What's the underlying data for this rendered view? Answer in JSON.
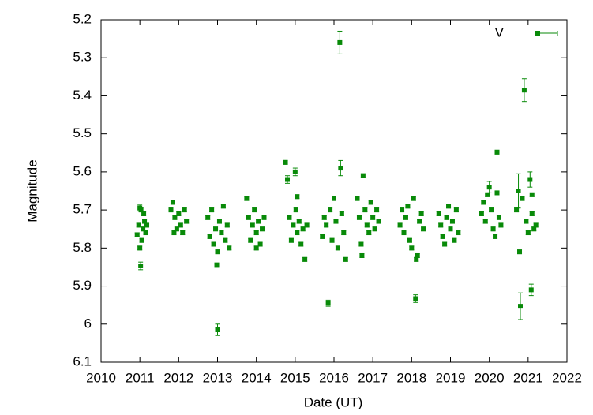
{
  "chart_data": {
    "type": "scatter",
    "xlabel": "Date (UT)",
    "ylabel": "Magnitude",
    "xlim": [
      2010,
      2022
    ],
    "xticks": [
      2010,
      2011,
      2012,
      2013,
      2014,
      2015,
      2016,
      2017,
      2018,
      2019,
      2020,
      2021,
      2022
    ],
    "ylim": [
      5.2,
      6.1
    ],
    "yticks": [
      5.2,
      5.3,
      5.4,
      5.5,
      5.6,
      5.7,
      5.8,
      5.9,
      6,
      6.1
    ],
    "y_inverted": true,
    "legend": "top-right",
    "series": [
      {
        "name": "V",
        "color": "#088a08",
        "x": [
          2010.93,
          2010.97,
          2011.0,
          2011.03,
          2011.05,
          2011.0,
          2011.08,
          2011.12,
          2011.15,
          2011.18,
          2011.1,
          2011.02,
          2011.8,
          2011.85,
          2011.9,
          2011.95,
          2012.0,
          2012.05,
          2012.1,
          2012.15,
          2012.2,
          2011.88,
          2012.75,
          2012.8,
          2012.85,
          2012.9,
          2012.95,
          2013.0,
          2013.05,
          2013.1,
          2013.15,
          2013.2,
          2013.25,
          2013.3,
          2012.98,
          2013.0,
          2013.75,
          2013.8,
          2013.85,
          2013.9,
          2013.95,
          2014.0,
          2014.05,
          2014.1,
          2014.15,
          2014.2,
          2014.0,
          2014.75,
          2014.8,
          2014.85,
          2014.9,
          2014.95,
          2015.0,
          2015.02,
          2015.05,
          2015.1,
          2015.15,
          2015.2,
          2015.25,
          2015.3,
          2015.05,
          2015.7,
          2015.75,
          2015.8,
          2015.85,
          2015.9,
          2015.95,
          2016.0,
          2016.05,
          2016.1,
          2016.15,
          2016.17,
          2016.2,
          2016.25,
          2016.3,
          2016.6,
          2016.65,
          2016.7,
          2016.72,
          2016.75,
          2016.8,
          2016.85,
          2016.9,
          2016.95,
          2017.0,
          2017.05,
          2017.1,
          2017.15,
          2017.7,
          2017.75,
          2017.8,
          2017.85,
          2017.9,
          2017.95,
          2018.0,
          2018.05,
          2018.1,
          2018.12,
          2018.15,
          2018.2,
          2018.25,
          2018.3,
          2018.7,
          2018.75,
          2018.8,
          2018.85,
          2018.9,
          2018.95,
          2019.0,
          2019.05,
          2019.1,
          2019.15,
          2019.2,
          2019.8,
          2019.85,
          2019.9,
          2019.95,
          2020.0,
          2020.05,
          2020.1,
          2020.15,
          2020.2,
          2020.2,
          2020.25,
          2020.3,
          2020.7,
          2020.75,
          2020.78,
          2020.8,
          2020.85,
          2020.9,
          2020.95,
          2021.0,
          2021.05,
          2021.08,
          2021.1,
          2021.15,
          2021.2,
          2021.1
        ],
        "values": [
          5.765,
          5.74,
          5.695,
          5.7,
          5.78,
          5.8,
          5.75,
          5.73,
          5.76,
          5.74,
          5.71,
          5.847,
          5.7,
          5.68,
          5.72,
          5.75,
          5.71,
          5.74,
          5.76,
          5.7,
          5.73,
          5.76,
          5.72,
          5.77,
          5.7,
          5.79,
          5.75,
          5.81,
          5.73,
          5.76,
          5.69,
          5.78,
          5.74,
          5.8,
          5.845,
          6.015,
          5.67,
          5.72,
          5.78,
          5.74,
          5.7,
          5.76,
          5.73,
          5.79,
          5.75,
          5.72,
          5.8,
          5.575,
          5.62,
          5.72,
          5.78,
          5.74,
          5.6,
          5.7,
          5.76,
          5.73,
          5.79,
          5.75,
          5.83,
          5.74,
          5.665,
          5.77,
          5.72,
          5.74,
          5.945,
          5.7,
          5.78,
          5.67,
          5.73,
          5.8,
          5.26,
          5.59,
          5.71,
          5.76,
          5.83,
          5.67,
          5.72,
          5.79,
          5.82,
          5.61,
          5.7,
          5.74,
          5.76,
          5.68,
          5.72,
          5.75,
          5.7,
          5.73,
          5.74,
          5.7,
          5.76,
          5.72,
          5.69,
          5.78,
          5.8,
          5.67,
          5.933,
          5.83,
          5.82,
          5.73,
          5.71,
          5.75,
          5.71,
          5.74,
          5.77,
          5.79,
          5.72,
          5.69,
          5.75,
          5.73,
          5.78,
          5.7,
          5.76,
          5.71,
          5.68,
          5.73,
          5.66,
          5.64,
          5.7,
          5.75,
          5.77,
          5.548,
          5.655,
          5.72,
          5.74,
          5.7,
          5.65,
          5.81,
          5.953,
          5.67,
          5.385,
          5.73,
          5.76,
          5.62,
          5.91,
          5.71,
          5.75,
          5.74,
          5.66
        ],
        "errors": [
          0.005,
          0.005,
          0.008,
          0.005,
          0.005,
          0.005,
          0.005,
          0.005,
          0.005,
          0.005,
          0.005,
          0.01,
          0.005,
          0.005,
          0.005,
          0.005,
          0.005,
          0.005,
          0.005,
          0.005,
          0.005,
          0.005,
          0.005,
          0.005,
          0.005,
          0.005,
          0.005,
          0.005,
          0.005,
          0.005,
          0.005,
          0.005,
          0.005,
          0.005,
          0.006,
          0.015,
          0.005,
          0.005,
          0.005,
          0.005,
          0.005,
          0.005,
          0.005,
          0.005,
          0.005,
          0.005,
          0.005,
          0.005,
          0.01,
          0.005,
          0.005,
          0.005,
          0.01,
          0.005,
          0.005,
          0.005,
          0.005,
          0.005,
          0.005,
          0.005,
          0.005,
          0.005,
          0.005,
          0.005,
          0.008,
          0.005,
          0.005,
          0.005,
          0.005,
          0.005,
          0.03,
          0.02,
          0.005,
          0.005,
          0.005,
          0.005,
          0.005,
          0.005,
          0.005,
          0.005,
          0.005,
          0.005,
          0.005,
          0.005,
          0.005,
          0.005,
          0.005,
          0.005,
          0.005,
          0.005,
          0.005,
          0.005,
          0.005,
          0.005,
          0.005,
          0.005,
          0.01,
          0.005,
          0.005,
          0.005,
          0.005,
          0.005,
          0.005,
          0.005,
          0.005,
          0.005,
          0.005,
          0.005,
          0.005,
          0.005,
          0.005,
          0.005,
          0.005,
          0.005,
          0.005,
          0.005,
          0.005,
          0.015,
          0.005,
          0.005,
          0.005,
          0.005,
          0.005,
          0.005,
          0.005,
          0.005,
          0.045,
          0.005,
          0.035,
          0.005,
          0.03,
          0.005,
          0.005,
          0.02,
          0.015,
          0.005,
          0.005,
          0.005,
          0.005
        ]
      }
    ]
  }
}
